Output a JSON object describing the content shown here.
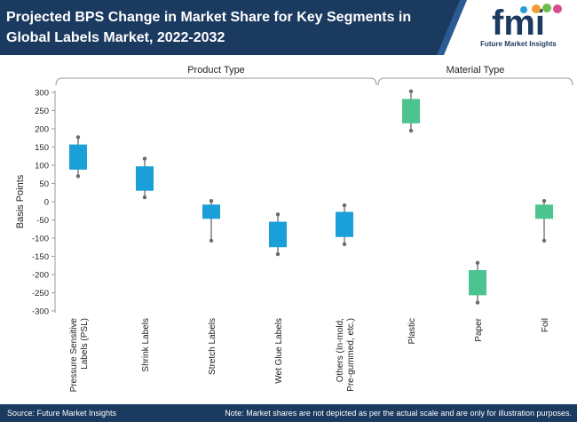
{
  "header": {
    "title": "Projected BPS Change in Market Share for Key Segments in Global Labels Market, 2022-2032"
  },
  "logo": {
    "mark": "fmi",
    "text": "Future Market Insights"
  },
  "footer": {
    "source": "Source: Future Market Insights",
    "note": "Note: Market shares are not depicted as per the actual scale and are only for illustration purposes."
  },
  "colors": {
    "header_bg": "#1b3a5f",
    "product_box": "#1a9fd8",
    "material_box": "#4cc48f",
    "whisker": "#6b6b6b"
  },
  "chart_data": {
    "type": "box",
    "ylabel": "Basis Points",
    "ylim": [
      -300,
      300
    ],
    "yticks": [
      300,
      250,
      200,
      150,
      100,
      50,
      0,
      -50,
      -100,
      -150,
      -200,
      -250,
      -300
    ],
    "groups": [
      {
        "label": "Product Type",
        "color_key": "product_box",
        "members": [
          0,
          1,
          2,
          3,
          4
        ]
      },
      {
        "label": "Material Type",
        "color_key": "material_box",
        "members": [
          5,
          6,
          7
        ]
      }
    ],
    "categories": [
      "Pressure Sensitive Labels (PSL)",
      "Shrink Labels",
      "Stretch Labels",
      "Wet Glue Labels",
      "Others (In-mold, Pre-gummed, etc.)",
      "Plastic",
      "Paper",
      "Foil"
    ],
    "category_lines": [
      [
        "Pressure Sensitive",
        "Labels (PSL)"
      ],
      [
        "Shrink Labels"
      ],
      [
        "Stretch Labels"
      ],
      [
        "Wet Glue Labels"
      ],
      [
        "Others (In-mold,",
        "Pre-gummed, etc.)"
      ],
      [
        "Plastic"
      ],
      [
        "Paper"
      ],
      [
        "Foil"
      ]
    ],
    "boxes": [
      {
        "min": 70,
        "q1": 88,
        "q3": 157,
        "max": 177
      },
      {
        "min": 12,
        "q1": 30,
        "q3": 97,
        "max": 118
      },
      {
        "min": -107,
        "q1": -47,
        "q3": -8,
        "max": 2
      },
      {
        "min": -144,
        "q1": -125,
        "q3": -55,
        "max": -35
      },
      {
        "min": -117,
        "q1": -97,
        "q3": -28,
        "max": -10
      },
      {
        "min": 195,
        "q1": 215,
        "q3": 282,
        "max": 303
      },
      {
        "min": -277,
        "q1": -257,
        "q3": -188,
        "max": -168
      },
      {
        "min": -107,
        "q1": -47,
        "q3": -8,
        "max": 2
      }
    ]
  }
}
